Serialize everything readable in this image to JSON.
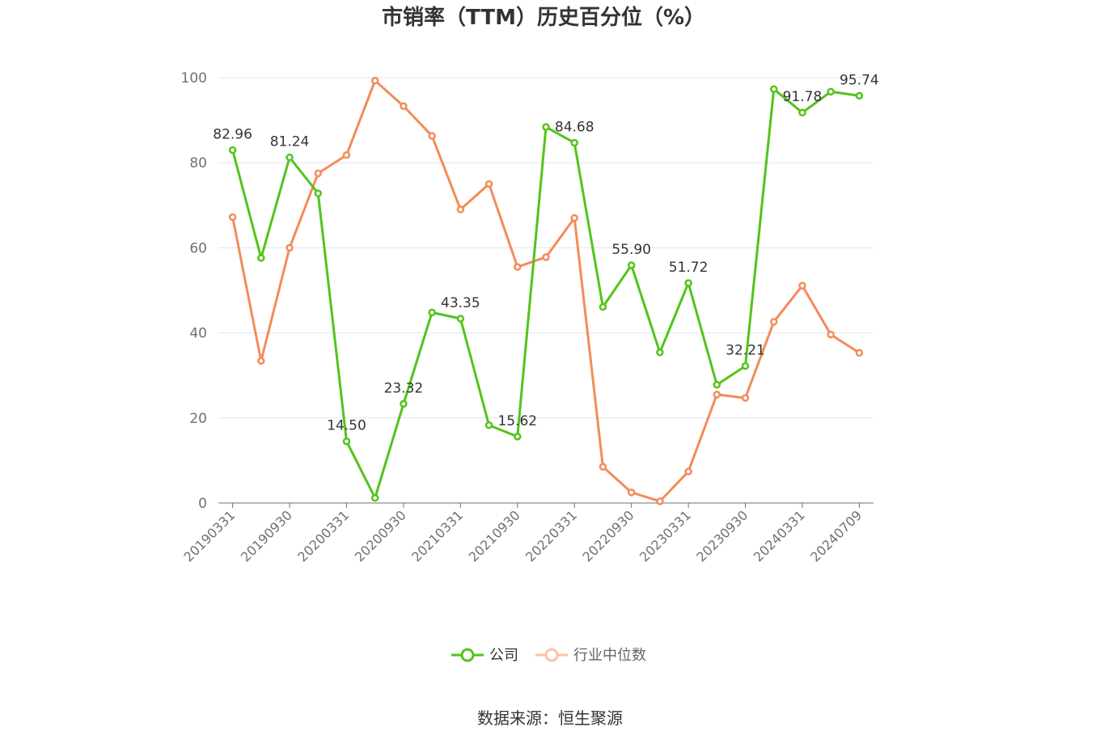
{
  "chart_data": {
    "type": "line",
    "title": "市销率（TTM）历史百分位（%）",
    "xlabel": "",
    "ylabel": "",
    "ylim": [
      0,
      100
    ],
    "yticks": [
      0,
      20,
      40,
      60,
      80,
      100
    ],
    "grid": true,
    "legend_position": "bottom",
    "x": [
      "20190331",
      "20190630",
      "20190930",
      "20191231",
      "20200331",
      "20200630",
      "20200930",
      "20201231",
      "20210331",
      "20210630",
      "20210930",
      "20211231",
      "20220331",
      "20220630",
      "20220930",
      "20221231",
      "20230331",
      "20230630",
      "20230930",
      "20231231",
      "20240331",
      "20240630",
      "20240709"
    ],
    "x_tick_labels": [
      "20190331",
      "20190930",
      "20200331",
      "20200930",
      "20210331",
      "20210930",
      "20220331",
      "20220930",
      "20230331",
      "20230930",
      "20240331",
      "20240709"
    ],
    "series": [
      {
        "name": "公司",
        "color": "#52c41a",
        "values": [
          82.96,
          57.6,
          81.24,
          72.8,
          14.5,
          1.2,
          23.32,
          44.8,
          43.35,
          18.3,
          15.62,
          88.4,
          84.68,
          46.1,
          55.9,
          35.4,
          51.72,
          27.8,
          32.21,
          97.3,
          91.78,
          96.7,
          95.74
        ],
        "labels": [
          "82.96",
          "",
          "81.24",
          "",
          "14.50",
          "",
          "23.32",
          "",
          "43.35",
          "",
          "15.62",
          "",
          "84.68",
          "",
          "55.90",
          "",
          "51.72",
          "",
          "32.21",
          "",
          "91.78",
          "",
          "95.74"
        ]
      },
      {
        "name": "行业中位数",
        "color": "#f28c5a",
        "values": [
          67.2,
          33.4,
          60.0,
          77.5,
          81.8,
          99.3,
          93.3,
          86.3,
          69.0,
          75.0,
          55.5,
          57.8,
          67.0,
          8.5,
          2.5,
          0.4,
          7.4,
          25.5,
          24.7,
          42.6,
          51.1,
          39.6,
          35.3
        ]
      }
    ]
  },
  "source_text": "数据来源：恒生聚源"
}
